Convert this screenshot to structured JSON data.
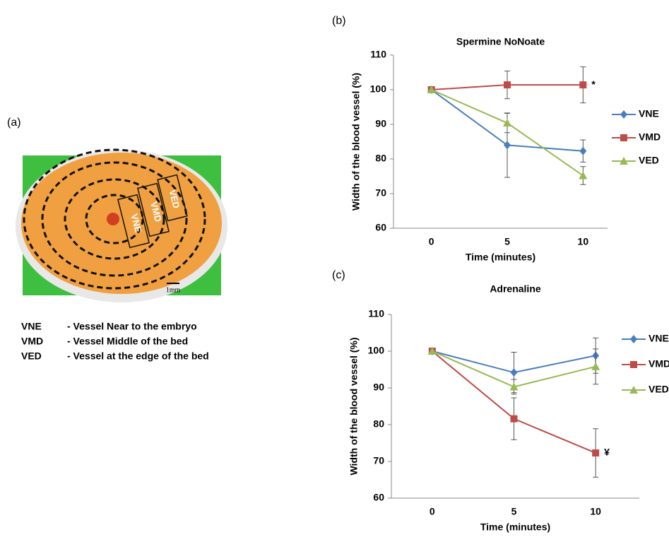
{
  "panel_a": {
    "label": "(a)",
    "zones": [
      "VNE",
      "VMD",
      "VED"
    ],
    "scale_bar": "1mm",
    "definitions": [
      [
        "VNE",
        "-  Vessel  Near to the  embryo"
      ],
      [
        "VMD",
        "-  Vessel  Middle of the bed"
      ],
      [
        "VED",
        "-  Vessel  at the edge of the bed"
      ]
    ]
  },
  "chart_data": [
    {
      "type": "line",
      "panel_label": "(b)",
      "title": "Spermine NoNoate",
      "x_label": "Time (minutes)",
      "y_label": "Width of the blood vessel  (%)",
      "categories": [
        "0",
        "5",
        "10"
      ],
      "ylim": [
        60,
        110
      ],
      "yticks": [
        60,
        70,
        80,
        90,
        100,
        110
      ],
      "series": [
        {
          "name": "VNE",
          "color": "#4a7ebb",
          "marker": "diamond",
          "values": [
            100,
            84,
            82.3
          ],
          "errors": [
            0,
            9.3,
            3.2
          ]
        },
        {
          "name": "VMD",
          "color": "#be4b48",
          "marker": "square",
          "values": [
            100,
            101.4,
            101.4
          ],
          "errors": [
            0,
            4,
            5.2
          ],
          "annotation": "*"
        },
        {
          "name": "VED",
          "color": "#98b954",
          "marker": "triangle",
          "values": [
            100,
            90.4,
            75.2
          ],
          "errors": [
            0,
            2.8,
            2.6
          ]
        }
      ]
    },
    {
      "type": "line",
      "panel_label": "(c)",
      "title": "Adrenaline",
      "x_label": "Time (minutes)",
      "y_label": "Width of the blood vessel  (%)",
      "categories": [
        "0",
        "5",
        "10"
      ],
      "ylim": [
        60,
        110
      ],
      "yticks": [
        60,
        70,
        80,
        90,
        100,
        110
      ],
      "series": [
        {
          "name": "VNE",
          "color": "#4a7ebb",
          "marker": "diamond",
          "values": [
            100,
            94.2,
            98.8
          ],
          "errors": [
            0,
            5.5,
            4.8
          ]
        },
        {
          "name": "VMD",
          "color": "#be4b48",
          "marker": "square",
          "values": [
            100,
            81.6,
            72.3
          ],
          "errors": [
            0,
            5.7,
            6.6
          ],
          "annotation": "¥"
        },
        {
          "name": "VED",
          "color": "#98b954",
          "marker": "triangle",
          "values": [
            100,
            90.3,
            95.8
          ],
          "errors": [
            0,
            2,
            4.8
          ]
        }
      ]
    }
  ]
}
